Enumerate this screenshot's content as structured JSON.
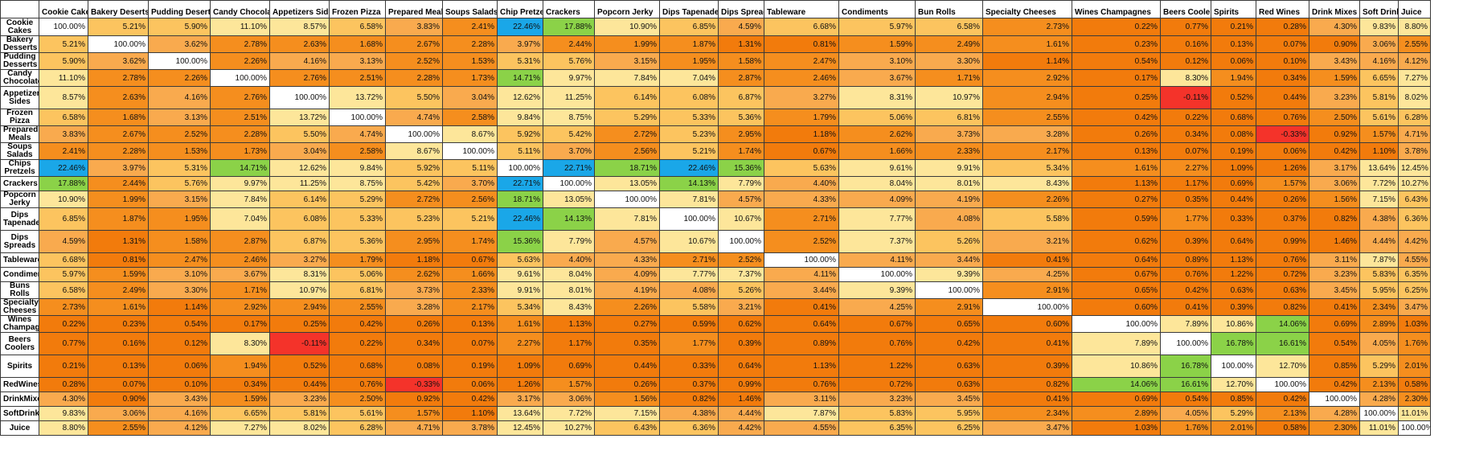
{
  "chart_data": {
    "type": "heatmap",
    "categories": [
      "Cookie Cakes",
      "Bakery Deserts",
      "Pudding Deserts",
      "Candy Chocolates",
      "Appetizers Sides",
      "Frozen Pizza",
      "Prepared Meals",
      "Soups Salads",
      "Chip Pretzels",
      "Crackers",
      "Popcorn Jerky",
      "Dips Tapenades",
      "Dips Spreads",
      "Tableware",
      "Condiments",
      "Bun Rolls",
      "Specialty Cheeses",
      "Wines Champagnes",
      "Beers Coolers",
      "Spirits",
      "Red Wines",
      "Drink Mixes",
      "Soft Drinks",
      "Juice"
    ],
    "row_labels": [
      "Cookie Cakes",
      "Bakery Desserts",
      "Pudding Desserts",
      "Candy Chocolates",
      "Appetizers Sides",
      "Frozen Pizza",
      "Prepared Meals",
      "Soups Salads",
      "Chips Pretzels",
      "Crackers",
      "Popcorn Jerky",
      "Dips Tapenades",
      "Dips Spreads",
      "Tableware",
      "Condiments",
      "Buns Rolls",
      "Specialty Cheeses",
      "Wines Champagnes",
      "Beers Coolers",
      "Spirits",
      "RedWines",
      "DrinkMixes",
      "SoftDrinks",
      "Juice"
    ],
    "unit": "%",
    "values": [
      [
        100.0,
        5.21,
        5.9,
        11.1,
        8.57,
        6.58,
        3.83,
        2.41,
        22.46,
        17.88,
        10.9,
        6.85,
        4.59,
        6.68,
        5.97,
        6.58,
        2.73,
        0.22,
        0.77,
        0.21,
        0.28,
        4.3,
        9.83,
        8.8
      ],
      [
        5.21,
        100.0,
        3.62,
        2.78,
        2.63,
        1.68,
        2.67,
        2.28,
        3.97,
        2.44,
        1.99,
        1.87,
        1.31,
        0.81,
        1.59,
        2.49,
        1.61,
        0.23,
        0.16,
        0.13,
        0.07,
        0.9,
        3.06,
        2.55
      ],
      [
        5.9,
        3.62,
        100.0,
        2.26,
        4.16,
        3.13,
        2.52,
        1.53,
        5.31,
        5.76,
        3.15,
        1.95,
        1.58,
        2.47,
        3.1,
        3.3,
        1.14,
        0.54,
        0.12,
        0.06,
        0.1,
        3.43,
        4.16,
        4.12
      ],
      [
        11.1,
        2.78,
        2.26,
        100.0,
        2.76,
        2.51,
        2.28,
        1.73,
        14.71,
        9.97,
        7.84,
        7.04,
        2.87,
        2.46,
        3.67,
        1.71,
        2.92,
        0.17,
        8.3,
        1.94,
        0.34,
        1.59,
        6.65,
        7.27
      ],
      [
        8.57,
        2.63,
        4.16,
        2.76,
        100.0,
        13.72,
        5.5,
        3.04,
        12.62,
        11.25,
        6.14,
        6.08,
        6.87,
        3.27,
        8.31,
        10.97,
        2.94,
        0.25,
        -0.11,
        0.52,
        0.44,
        3.23,
        5.81,
        8.02
      ],
      [
        6.58,
        1.68,
        3.13,
        2.51,
        13.72,
        100.0,
        4.74,
        2.58,
        9.84,
        8.75,
        5.29,
        5.33,
        5.36,
        1.79,
        5.06,
        6.81,
        2.55,
        0.42,
        0.22,
        0.68,
        0.76,
        2.5,
        5.61,
        6.28
      ],
      [
        3.83,
        2.67,
        2.52,
        2.28,
        5.5,
        4.74,
        100.0,
        8.67,
        5.92,
        5.42,
        2.72,
        5.23,
        2.95,
        1.18,
        2.62,
        3.73,
        3.28,
        0.26,
        0.34,
        0.08,
        -0.33,
        0.92,
        1.57,
        4.71
      ],
      [
        2.41,
        2.28,
        1.53,
        1.73,
        3.04,
        2.58,
        8.67,
        100.0,
        5.11,
        3.7,
        2.56,
        5.21,
        1.74,
        0.67,
        1.66,
        2.33,
        2.17,
        0.13,
        0.07,
        0.19,
        0.06,
        0.42,
        1.1,
        3.78
      ],
      [
        22.46,
        3.97,
        5.31,
        14.71,
        12.62,
        9.84,
        5.92,
        5.11,
        100.0,
        22.71,
        18.71,
        22.46,
        15.36,
        5.63,
        9.61,
        9.91,
        5.34,
        1.61,
        2.27,
        1.09,
        1.26,
        3.17,
        13.64,
        12.45
      ],
      [
        17.88,
        2.44,
        5.76,
        9.97,
        11.25,
        8.75,
        5.42,
        3.7,
        22.71,
        100.0,
        13.05,
        14.13,
        7.79,
        4.4,
        8.04,
        8.01,
        8.43,
        1.13,
        1.17,
        0.69,
        1.57,
        3.06,
        7.72,
        10.27
      ],
      [
        10.9,
        1.99,
        3.15,
        7.84,
        6.14,
        5.29,
        2.72,
        2.56,
        18.71,
        13.05,
        100.0,
        7.81,
        4.57,
        4.33,
        4.09,
        4.19,
        2.26,
        0.27,
        0.35,
        0.44,
        0.26,
        1.56,
        7.15,
        6.43
      ],
      [
        6.85,
        1.87,
        1.95,
        7.04,
        6.08,
        5.33,
        5.23,
        5.21,
        22.46,
        14.13,
        7.81,
        100.0,
        10.67,
        2.71,
        7.77,
        4.08,
        5.58,
        0.59,
        1.77,
        0.33,
        0.37,
        0.82,
        4.38,
        6.36
      ],
      [
        4.59,
        1.31,
        1.58,
        2.87,
        6.87,
        5.36,
        2.95,
        1.74,
        15.36,
        7.79,
        4.57,
        10.67,
        100.0,
        2.52,
        7.37,
        5.26,
        3.21,
        0.62,
        0.39,
        0.64,
        0.99,
        1.46,
        4.44,
        4.42
      ],
      [
        6.68,
        0.81,
        2.47,
        2.46,
        3.27,
        1.79,
        1.18,
        0.67,
        5.63,
        4.4,
        4.33,
        2.71,
        2.52,
        100.0,
        4.11,
        3.44,
        0.41,
        0.64,
        0.89,
        1.13,
        0.76,
        3.11,
        7.87,
        4.55
      ],
      [
        5.97,
        1.59,
        3.1,
        3.67,
        8.31,
        5.06,
        2.62,
        1.66,
        9.61,
        8.04,
        4.09,
        7.77,
        7.37,
        4.11,
        100.0,
        9.39,
        4.25,
        0.67,
        0.76,
        1.22,
        0.72,
        3.23,
        5.83,
        6.35
      ],
      [
        6.58,
        2.49,
        3.3,
        1.71,
        10.97,
        6.81,
        3.73,
        2.33,
        9.91,
        8.01,
        4.19,
        4.08,
        5.26,
        3.44,
        9.39,
        100.0,
        2.91,
        0.65,
        0.42,
        0.63,
        0.63,
        3.45,
        5.95,
        6.25
      ],
      [
        2.73,
        1.61,
        1.14,
        2.92,
        2.94,
        2.55,
        3.28,
        2.17,
        5.34,
        8.43,
        2.26,
        5.58,
        3.21,
        0.41,
        4.25,
        2.91,
        100.0,
        0.6,
        0.41,
        0.39,
        0.82,
        0.41,
        2.34,
        3.47
      ],
      [
        0.22,
        0.23,
        0.54,
        0.17,
        0.25,
        0.42,
        0.26,
        0.13,
        1.61,
        1.13,
        0.27,
        0.59,
        0.62,
        0.64,
        0.67,
        0.65,
        0.6,
        100.0,
        7.89,
        10.86,
        14.06,
        0.69,
        2.89,
        1.03
      ],
      [
        0.77,
        0.16,
        0.12,
        8.3,
        -0.11,
        0.22,
        0.34,
        0.07,
        2.27,
        1.17,
        0.35,
        1.77,
        0.39,
        0.89,
        0.76,
        0.42,
        0.41,
        7.89,
        100.0,
        16.78,
        16.61,
        0.54,
        4.05,
        1.76
      ],
      [
        0.21,
        0.13,
        0.06,
        1.94,
        0.52,
        0.68,
        0.08,
        0.19,
        1.09,
        0.69,
        0.44,
        0.33,
        0.64,
        1.13,
        1.22,
        0.63,
        0.39,
        10.86,
        16.78,
        100.0,
        12.7,
        0.85,
        5.29,
        2.01
      ],
      [
        0.28,
        0.07,
        0.1,
        0.34,
        0.44,
        0.76,
        -0.33,
        0.06,
        1.26,
        1.57,
        0.26,
        0.37,
        0.99,
        0.76,
        0.72,
        0.63,
        0.82,
        14.06,
        16.61,
        12.7,
        100.0,
        0.42,
        2.13,
        0.58
      ],
      [
        4.3,
        0.9,
        3.43,
        1.59,
        3.23,
        2.5,
        0.92,
        0.42,
        3.17,
        3.06,
        1.56,
        0.82,
        1.46,
        3.11,
        3.23,
        3.45,
        0.41,
        0.69,
        0.54,
        0.85,
        0.42,
        100.0,
        4.28,
        2.3
      ],
      [
        9.83,
        3.06,
        4.16,
        6.65,
        5.81,
        5.61,
        1.57,
        1.1,
        13.64,
        7.72,
        7.15,
        4.38,
        4.44,
        7.87,
        5.83,
        5.95,
        2.34,
        2.89,
        4.05,
        5.29,
        2.13,
        4.28,
        100.0,
        11.01
      ],
      [
        8.8,
        2.55,
        4.12,
        7.27,
        8.02,
        6.28,
        4.71,
        3.78,
        12.45,
        10.27,
        6.43,
        6.36,
        4.42,
        4.55,
        6.35,
        6.25,
        3.47,
        1.03,
        1.76,
        2.01,
        0.58,
        2.3,
        11.01,
        100.0
      ]
    ],
    "legend": "none",
    "grid": true,
    "colors": {
      "diagonal": "#ffffff",
      "negative": "#f4332a",
      "blue": "#1aa7e8",
      "green": "#8bd248",
      "light_yellow": "#fde69a",
      "yellow_orange": "#fcc45f",
      "light_orange": "#f9aa4e",
      "orange": "#f58e1e",
      "deep_orange": "#f27b0c"
    }
  }
}
